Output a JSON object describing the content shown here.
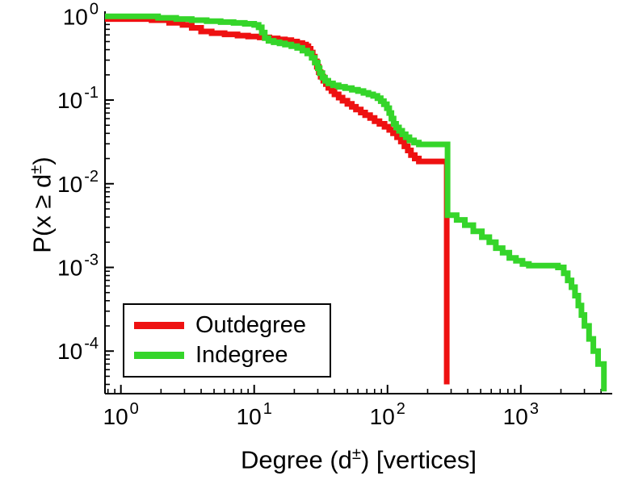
{
  "chart_data": {
    "type": "line",
    "subtype": "stairs-ccdf",
    "scale": "log-log",
    "title": "",
    "xlabel_parts": {
      "pre": "Degree (d",
      "sup": "±",
      "post": ") [vertices]"
    },
    "ylabel_parts": {
      "pre": "P(x ≥ d",
      "sup": "±",
      "post": ")"
    },
    "xlim": [
      0.76,
      4850
    ],
    "ylim": [
      3.1e-05,
      1.15
    ],
    "x_tick_exponents": [
      0,
      1,
      2,
      3
    ],
    "y_tick_exponents": [
      0,
      -1,
      -2,
      -3,
      -4
    ],
    "grid": false,
    "legend_position": "lower-left",
    "axis_color": "#000000",
    "series": [
      {
        "name": "Outdegree",
        "color": "#ee1111",
        "points": [
          [
            0.76,
            0.93
          ],
          [
            1.7,
            0.9
          ],
          [
            2.3,
            0.84
          ],
          [
            2.9,
            0.79
          ],
          [
            3.4,
            0.73
          ],
          [
            4,
            0.66
          ],
          [
            4.8,
            0.63
          ],
          [
            6,
            0.61
          ],
          [
            7.5,
            0.59
          ],
          [
            9,
            0.575
          ],
          [
            11,
            0.56
          ],
          [
            13,
            0.545
          ],
          [
            15,
            0.53
          ],
          [
            17,
            0.52
          ],
          [
            19,
            0.5
          ],
          [
            21,
            0.48
          ],
          [
            23,
            0.46
          ],
          [
            24.5,
            0.44
          ],
          [
            25.5,
            0.41
          ],
          [
            26.5,
            0.37
          ],
          [
            27.5,
            0.33
          ],
          [
            28.5,
            0.29
          ],
          [
            29.5,
            0.25
          ],
          [
            30.5,
            0.215
          ],
          [
            31.5,
            0.19
          ],
          [
            33,
            0.17
          ],
          [
            34.5,
            0.155
          ],
          [
            36,
            0.14
          ],
          [
            38,
            0.128
          ],
          [
            40,
            0.117
          ],
          [
            43,
            0.107
          ],
          [
            46,
            0.098
          ],
          [
            50,
            0.09
          ],
          [
            54,
            0.083
          ],
          [
            58,
            0.077
          ],
          [
            63,
            0.071
          ],
          [
            68,
            0.066
          ],
          [
            74,
            0.061
          ],
          [
            80,
            0.056
          ],
          [
            87,
            0.052
          ],
          [
            95,
            0.048
          ],
          [
            103,
            0.044
          ],
          [
            110,
            0.04
          ],
          [
            118,
            0.036
          ],
          [
            126,
            0.032
          ],
          [
            134,
            0.028
          ],
          [
            142,
            0.025
          ],
          [
            150,
            0.022
          ],
          [
            160,
            0.02
          ],
          [
            172,
            0.0185
          ],
          [
            278,
            4e-05
          ]
        ]
      },
      {
        "name": "Indegree",
        "color": "#35d52a",
        "points": [
          [
            0.76,
            1.0
          ],
          [
            1.9,
            0.96
          ],
          [
            2.6,
            0.93
          ],
          [
            3.4,
            0.9
          ],
          [
            4.4,
            0.875
          ],
          [
            5.6,
            0.855
          ],
          [
            7,
            0.835
          ],
          [
            8.5,
            0.815
          ],
          [
            10,
            0.79
          ],
          [
            10.8,
            0.74
          ],
          [
            11.4,
            0.64
          ],
          [
            12,
            0.55
          ],
          [
            12.8,
            0.51
          ],
          [
            14,
            0.49
          ],
          [
            15.5,
            0.475
          ],
          [
            17,
            0.46
          ],
          [
            19,
            0.44
          ],
          [
            21,
            0.42
          ],
          [
            23,
            0.39
          ],
          [
            25,
            0.36
          ],
          [
            27,
            0.32
          ],
          [
            28.5,
            0.28
          ],
          [
            30,
            0.24
          ],
          [
            31,
            0.21
          ],
          [
            32.5,
            0.185
          ],
          [
            34,
            0.17
          ],
          [
            36,
            0.158
          ],
          [
            39,
            0.15
          ],
          [
            43,
            0.144
          ],
          [
            48,
            0.139
          ],
          [
            54,
            0.133
          ],
          [
            60,
            0.128
          ],
          [
            66,
            0.122
          ],
          [
            72,
            0.117
          ],
          [
            78,
            0.112
          ],
          [
            84,
            0.105
          ],
          [
            89,
            0.097
          ],
          [
            94,
            0.089
          ],
          [
            99,
            0.08
          ],
          [
            103,
            0.07
          ],
          [
            107,
            0.06
          ],
          [
            111,
            0.052
          ],
          [
            116,
            0.047
          ],
          [
            122,
            0.043
          ],
          [
            129,
            0.039
          ],
          [
            137,
            0.036
          ],
          [
            146,
            0.033
          ],
          [
            158,
            0.031
          ],
          [
            172,
            0.0295
          ],
          [
            282,
            0.0042
          ],
          [
            330,
            0.0037
          ],
          [
            380,
            0.0032
          ],
          [
            440,
            0.0027
          ],
          [
            510,
            0.0023
          ],
          [
            580,
            0.002
          ],
          [
            650,
            0.0017
          ],
          [
            730,
            0.0015
          ],
          [
            820,
            0.0013
          ],
          [
            920,
            0.0012
          ],
          [
            1030,
            0.0011
          ],
          [
            1150,
            0.00105
          ],
          [
            1900,
            0.001
          ],
          [
            2100,
            0.00085
          ],
          [
            2250,
            0.0007
          ],
          [
            2400,
            0.00058
          ],
          [
            2550,
            0.00046
          ],
          [
            2700,
            0.00035
          ],
          [
            2850,
            0.00027
          ],
          [
            3000,
            0.0002
          ],
          [
            3250,
            0.00014
          ],
          [
            3500,
            0.0001
          ],
          [
            3800,
            7e-05
          ],
          [
            4200,
            3.3e-05
          ]
        ]
      }
    ],
    "legend": [
      "Outdegree",
      "Indegree"
    ]
  }
}
